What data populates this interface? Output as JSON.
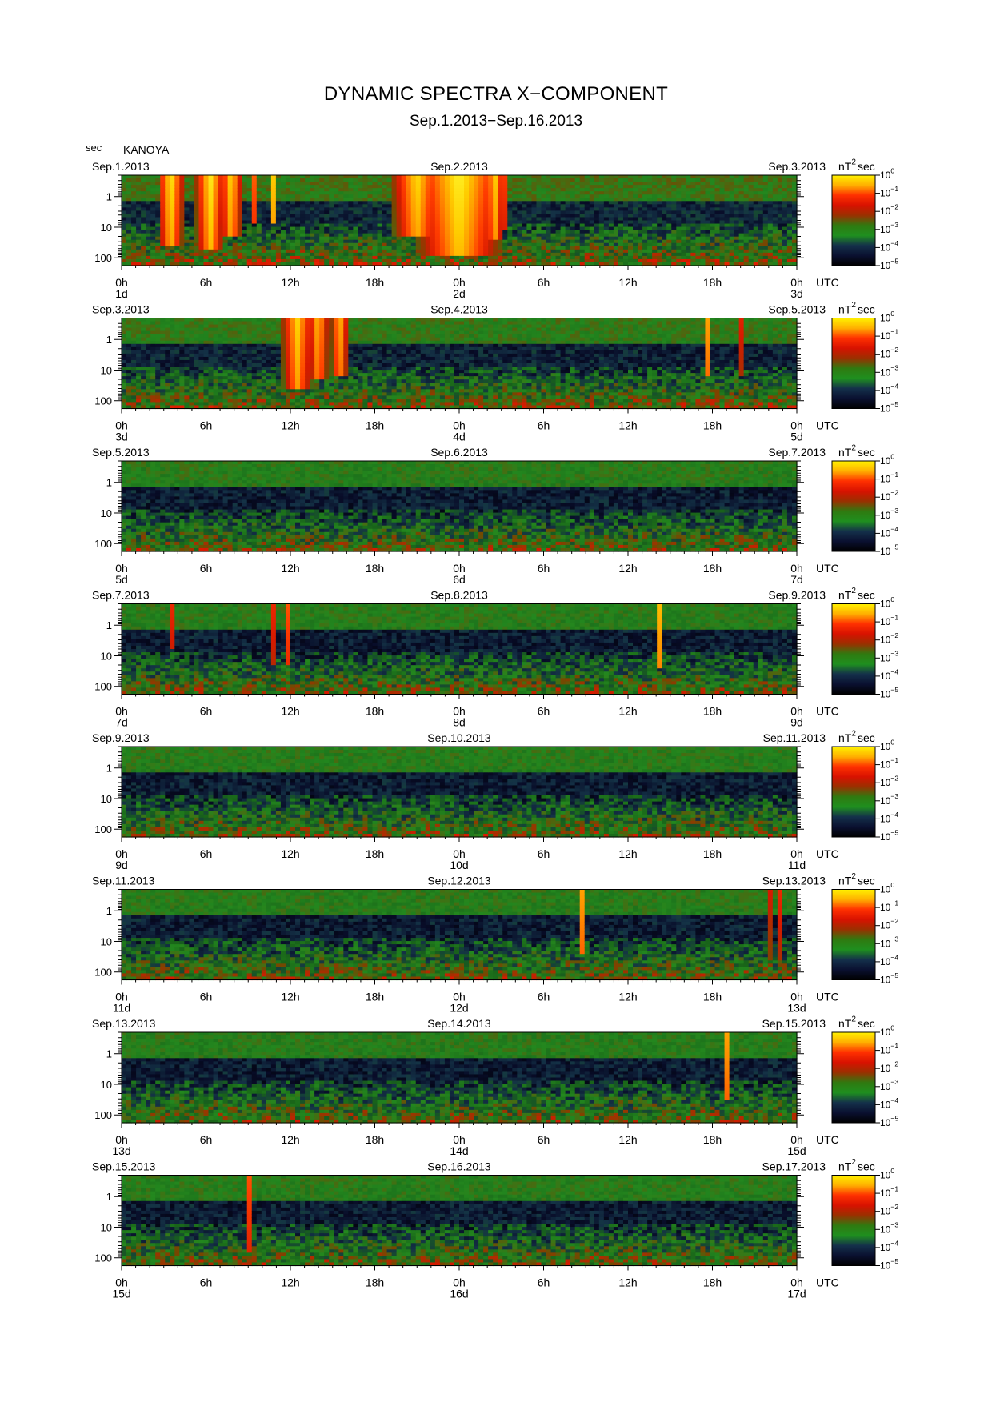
{
  "header": {
    "title": "DYNAMIC SPECTRA X−COMPONENT",
    "subtitle": "Sep.1.2013−Sep.16.2013",
    "station": "KANOYA",
    "period_unit": "sec"
  },
  "colorbar": {
    "unit_base": "nT",
    "unit_exp": "2",
    "unit_suffix": "sec",
    "ticks": [
      {
        "base": "10",
        "exp": "0"
      },
      {
        "base": "10",
        "exp": "−1"
      },
      {
        "base": "10",
        "exp": "−2"
      },
      {
        "base": "10",
        "exp": "−3"
      },
      {
        "base": "10",
        "exp": "−4"
      },
      {
        "base": "10",
        "exp": "−5"
      }
    ],
    "colors": [
      "#fff200",
      "#ffb000",
      "#ff3000",
      "#d81200",
      "#9a3000",
      "#2f7a10",
      "#1f8f1f",
      "#14304a",
      "#0a1030",
      "#000000"
    ]
  },
  "axis": {
    "time_ticks": [
      "0h",
      "6h",
      "12h",
      "18h",
      "0h",
      "6h",
      "12h",
      "18h",
      "0h"
    ],
    "timezone": "UTC",
    "period_ticks": [
      "1",
      "10",
      "100"
    ]
  },
  "chart_data": {
    "type": "heatmap",
    "title": "DYNAMIC SPECTRA X−COMPONENT",
    "x_units": "hours (UTC), 48 h per panel",
    "y_units": "period (sec), log scale",
    "ylim": [
      0.2,
      180
    ],
    "color_scale": "log10 power, nT^2 sec, 1e-5 to 1e0",
    "panels": [
      {
        "start_label": "Sep.1.2013",
        "mid_label": "Sep.2.2013",
        "end_label": "Sep.3.2013",
        "day_labels": [
          "1d",
          "2d",
          "3d"
        ],
        "background_level": -3.2,
        "events": [
          {
            "hour": 3.5,
            "width": 0.9,
            "level": -0.1,
            "reach_period": 30
          },
          {
            "hour": 6.3,
            "width": 1.0,
            "level": -0.1,
            "reach_period": 40
          },
          {
            "hour": 7.8,
            "width": 0.8,
            "level": -0.3,
            "reach_period": 15
          },
          {
            "hour": 9.5,
            "width": 0.2,
            "level": -0.5,
            "reach_period": 5
          },
          {
            "hour": 10.8,
            "width": 0.2,
            "level": -0.5,
            "reach_period": 6
          },
          {
            "hour": 21.0,
            "width": 1.8,
            "level": -0.3,
            "reach_period": 15
          },
          {
            "hour": 24.0,
            "width": 3.0,
            "level": 0.0,
            "reach_period": 60
          },
          {
            "hour": 26.5,
            "width": 0.7,
            "level": -0.3,
            "reach_period": 20
          },
          {
            "hour": 27.1,
            "width": 0.3,
            "level": -0.4,
            "reach_period": 8
          }
        ]
      },
      {
        "start_label": "Sep.3.2013",
        "mid_label": "Sep.4.2013",
        "end_label": "Sep.5.2013",
        "day_labels": [
          "3d",
          "4d",
          "5d"
        ],
        "background_level": -3.4,
        "events": [
          {
            "hour": 12.5,
            "width": 1.2,
            "level": -0.4,
            "reach_period": 30
          },
          {
            "hour": 14.0,
            "width": 0.8,
            "level": -0.5,
            "reach_period": 15
          },
          {
            "hour": 15.5,
            "width": 0.7,
            "level": -0.5,
            "reach_period": 10
          },
          {
            "hour": 41.6,
            "width": 0.2,
            "level": -0.2,
            "reach_period": 12
          },
          {
            "hour": 44.2,
            "width": 0.2,
            "level": -0.3,
            "reach_period": 10
          }
        ]
      },
      {
        "start_label": "Sep.5.2013",
        "mid_label": "Sep.6.2013",
        "end_label": "Sep.7.2013",
        "day_labels": [
          "5d",
          "6d",
          "7d"
        ],
        "background_level": -3.6,
        "events": []
      },
      {
        "start_label": "Sep.7.2013",
        "mid_label": "Sep.8.2013",
        "end_label": "Sep.9.2013",
        "day_labels": [
          "7d",
          "8d",
          "9d"
        ],
        "background_level": -3.6,
        "events": [
          {
            "hour": 3.5,
            "width": 0.15,
            "level": -0.3,
            "reach_period": 4
          },
          {
            "hour": 10.9,
            "width": 0.15,
            "level": -0.3,
            "reach_period": 15
          },
          {
            "hour": 11.9,
            "width": 0.15,
            "level": -0.3,
            "reach_period": 15
          },
          {
            "hour": 38.2,
            "width": 0.15,
            "level": -0.2,
            "reach_period": 20
          }
        ]
      },
      {
        "start_label": "Sep.9.2013",
        "mid_label": "Sep.10.2013",
        "end_label": "Sep.11.2013",
        "day_labels": [
          "9d",
          "10d",
          "11d"
        ],
        "background_level": -3.6,
        "events": []
      },
      {
        "start_label": "Sep.11.2013",
        "mid_label": "Sep.12.2013",
        "end_label": "Sep.13.2013",
        "day_labels": [
          "11d",
          "12d",
          "13d"
        ],
        "background_level": -3.6,
        "events": [
          {
            "hour": 32.7,
            "width": 0.15,
            "level": -0.2,
            "reach_period": 20
          },
          {
            "hour": 46.0,
            "width": 0.15,
            "level": -0.3,
            "reach_period": 30
          },
          {
            "hour": 46.7,
            "width": 0.15,
            "level": -0.3,
            "reach_period": 30
          }
        ]
      },
      {
        "start_label": "Sep.13.2013",
        "mid_label": "Sep.14.2013",
        "end_label": "Sep.15.2013",
        "day_labels": [
          "13d",
          "14d",
          "15d"
        ],
        "background_level": -3.6,
        "events": [
          {
            "hour": 43.0,
            "width": 0.15,
            "level": -0.4,
            "reach_period": 25
          }
        ]
      },
      {
        "start_label": "Sep.15.2013",
        "mid_label": "Sep.16.2013",
        "end_label": "Sep.17.2013",
        "day_labels": [
          "15d",
          "16d",
          "17d"
        ],
        "background_level": -3.6,
        "events": [
          {
            "hour": 9.0,
            "width": 0.15,
            "level": -0.1,
            "reach_period": 50
          }
        ]
      }
    ]
  }
}
